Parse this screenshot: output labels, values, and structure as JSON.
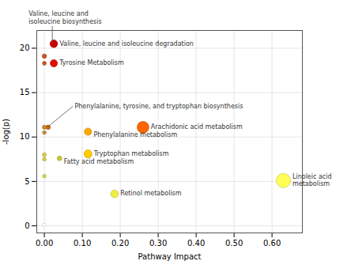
{
  "chart_data": {
    "type": "scatter",
    "xlabel": "Pathway Impact",
    "ylabel": "-log(p)",
    "xlim": [
      -0.02,
      0.68
    ],
    "ylim": [
      -0.8,
      22
    ],
    "xticks": [
      0.0,
      0.1,
      0.2,
      0.3,
      0.4,
      0.5,
      0.6
    ],
    "yticks": [
      0,
      5,
      10,
      15,
      20
    ],
    "grid": true,
    "points": [
      {
        "x": 0.0,
        "y": 19.1,
        "size": 18,
        "color": "#cc5522"
      },
      {
        "x": 0.0,
        "y": 18.3,
        "size": 14,
        "color": "#cc5522"
      },
      {
        "x": 0.0,
        "y": 11.1,
        "size": 15,
        "color": "#cc8833"
      },
      {
        "x": 0.0,
        "y": 10.5,
        "size": 13,
        "color": "#cc8833"
      },
      {
        "x": 0.0,
        "y": 8.0,
        "size": 14,
        "color": "#ddcc44"
      },
      {
        "x": 0.0,
        "y": 7.5,
        "size": 13,
        "color": "#ddcc44"
      },
      {
        "x": 0.0,
        "y": 5.6,
        "size": 12,
        "color": "#ccdd44"
      },
      {
        "x": 0.0,
        "y": 0.1,
        "size": 13,
        "color": "#ffffff"
      },
      {
        "x": 0.01,
        "y": 11.1,
        "size": 18,
        "color": "#cc6600"
      },
      {
        "x": 0.04,
        "y": 7.6,
        "size": 20,
        "color": "#cccc33",
        "label": "Fatty acid metabolism"
      },
      {
        "x": 0.025,
        "y": 20.5,
        "size": 55,
        "color": "#cc0000",
        "label": "Valine, leucine and isoleucine degradation"
      },
      {
        "x": 0.025,
        "y": 18.3,
        "size": 50,
        "color": "#dd1100",
        "label": "Tyrosine Metabolism"
      },
      {
        "x": 0.26,
        "y": 11.1,
        "size": 130,
        "color": "#ff6600",
        "label": "Arachidonic acid metabolism"
      },
      {
        "x": 0.115,
        "y": 10.6,
        "size": 50,
        "color": "#ffaa00",
        "label": "Phenylalanine metabolism"
      },
      {
        "x": 0.115,
        "y": 8.1,
        "size": 60,
        "color": "#ffcc00",
        "label": "Tryptophan metabolism"
      },
      {
        "x": 0.185,
        "y": 3.6,
        "size": 55,
        "color": "#eeee44",
        "label": "Retinol metabolism"
      },
      {
        "x": 0.63,
        "y": 5.1,
        "size": 190,
        "color": "#ffff55",
        "label": "Linoleic acid\nmetabolism"
      }
    ],
    "annotations": [
      {
        "text": "Valine, leucine and\nisoleucine biosynthesis",
        "x": 0.022,
        "y": 20.5
      },
      {
        "text": "Phenylalanine, tyrosine, and tryptophan biosynthesis",
        "x": 0.01,
        "y": 11.1
      }
    ]
  }
}
